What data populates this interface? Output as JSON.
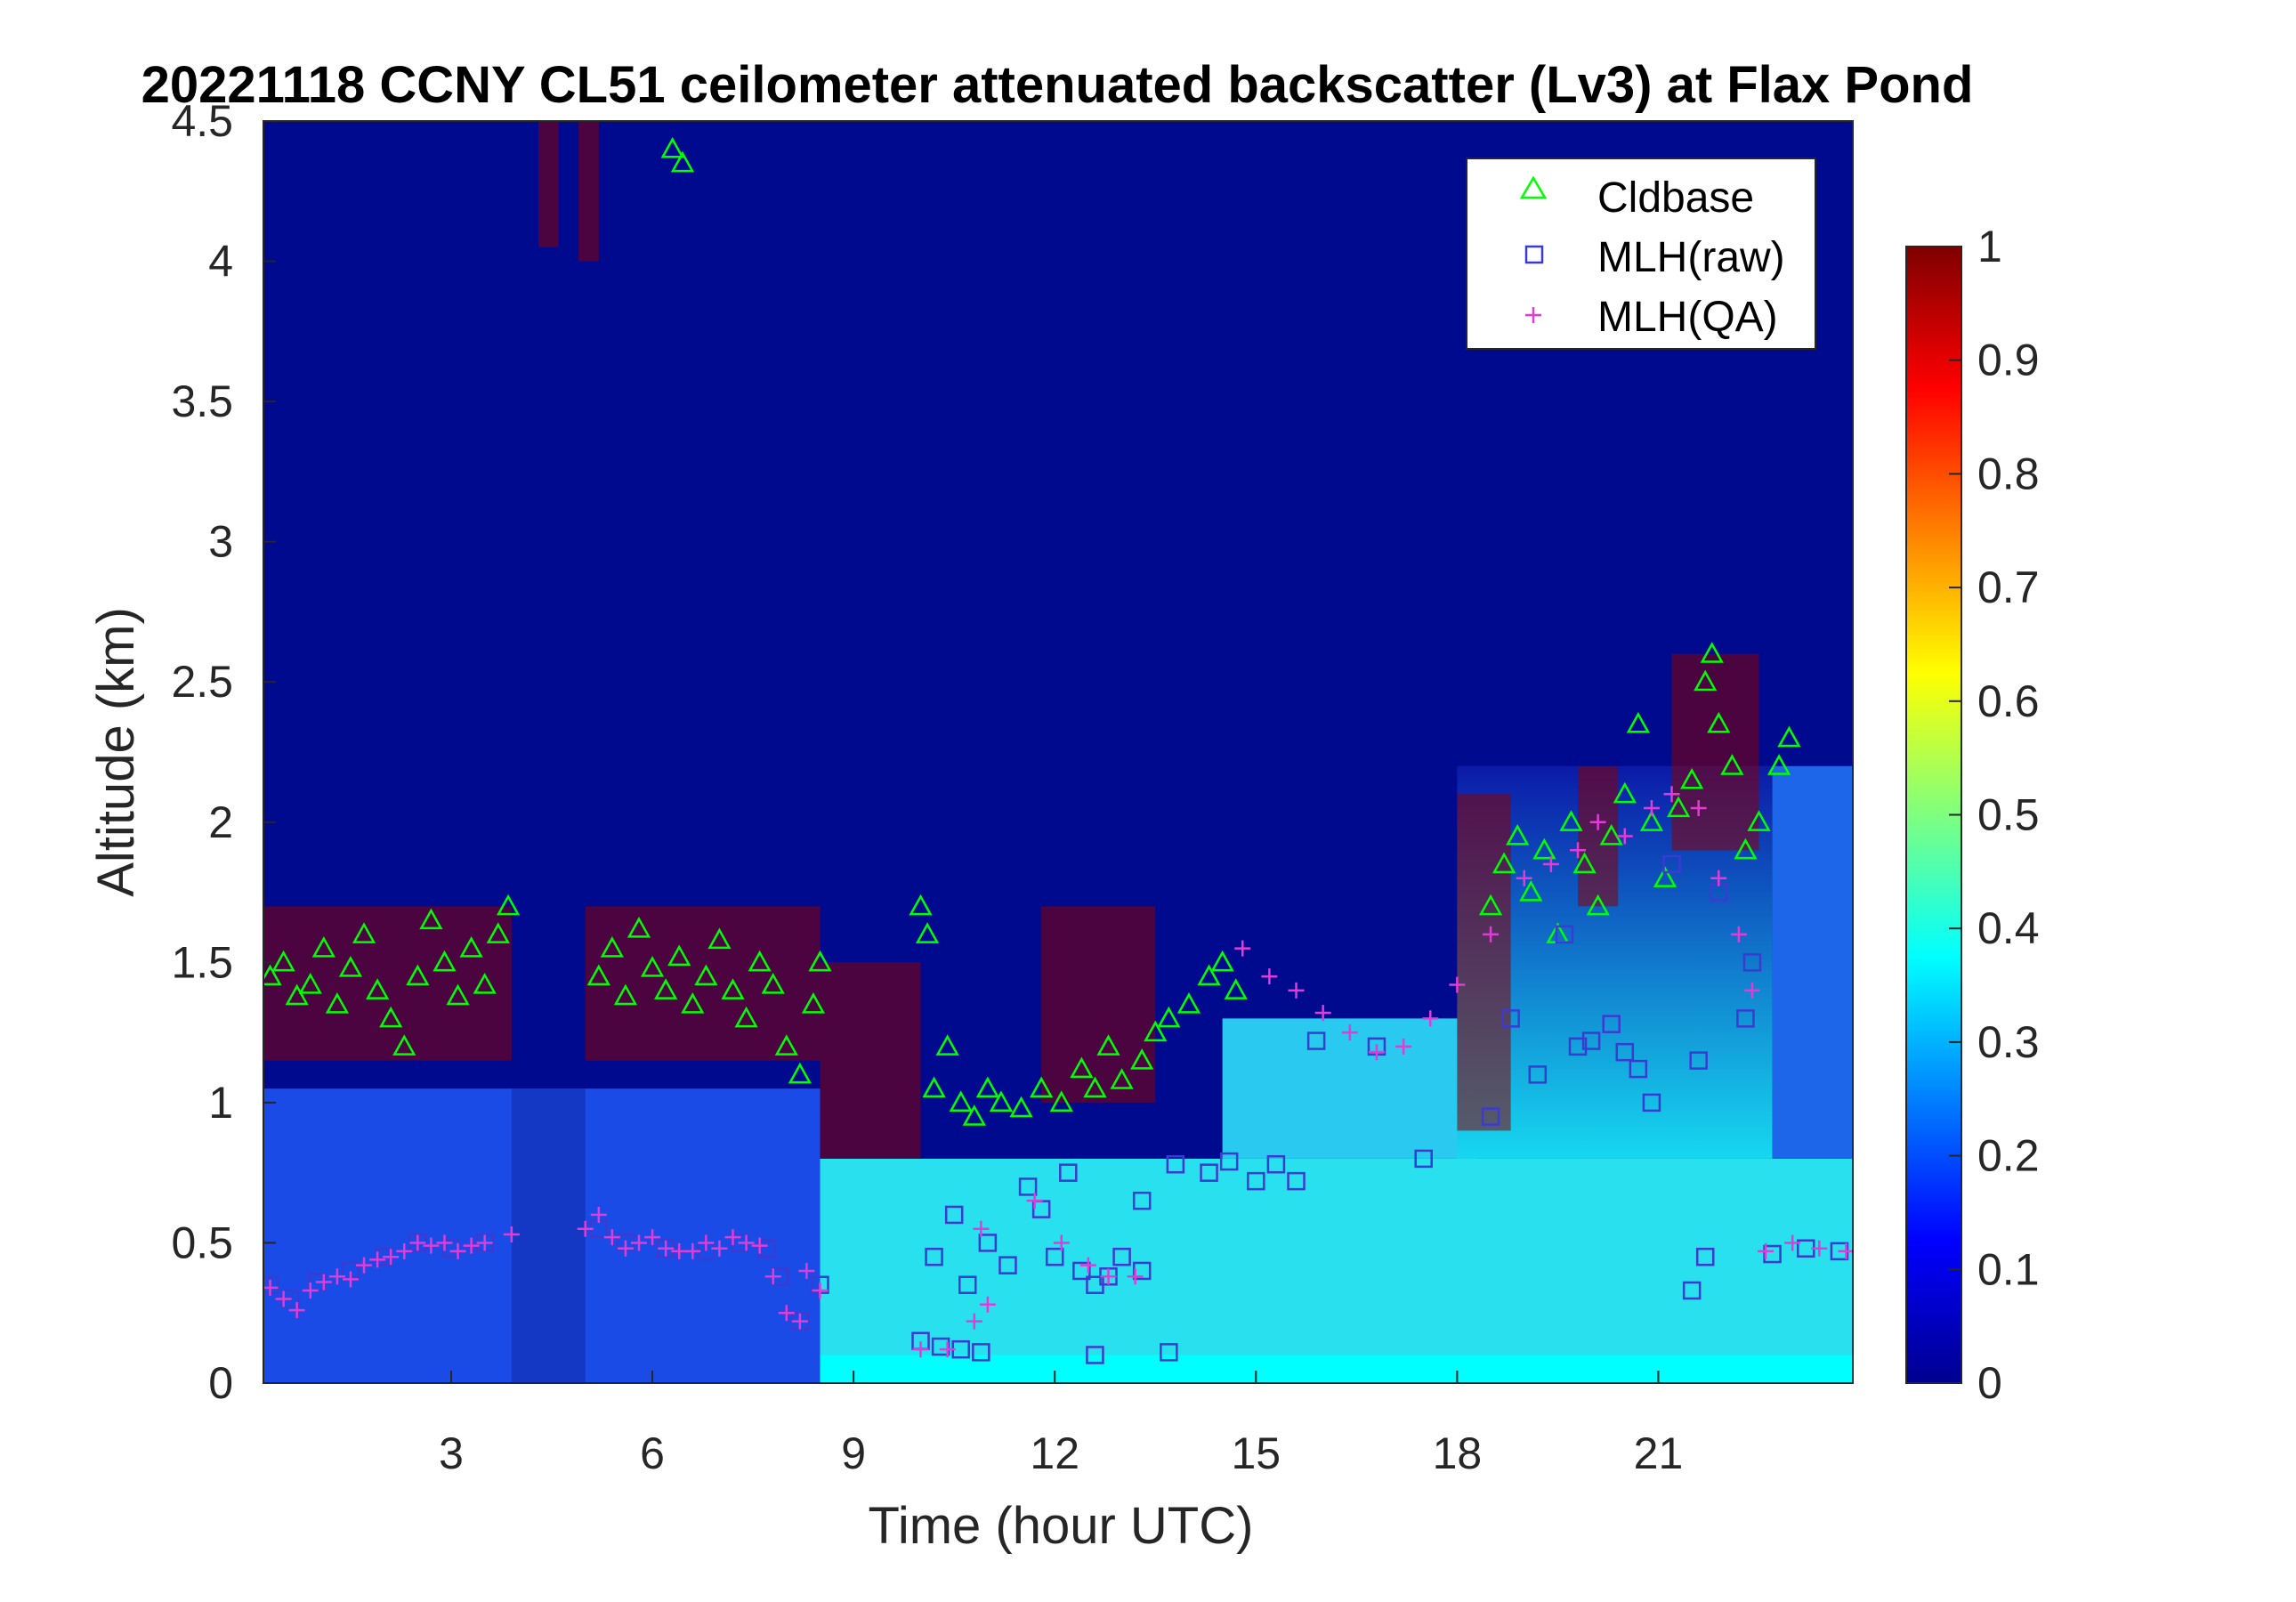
{
  "chart_data": {
    "type": "heatmap",
    "title": "20221118 CCNY CL51 ceilometer attenuated backscatter (Lv3) at Flax Pond",
    "xlabel": "Time (hour UTC)",
    "ylabel": "Altitude (km)",
    "xlim": [
      0.2,
      23.9
    ],
    "ylim": [
      0,
      4.5
    ],
    "xticks": [
      "3",
      "6",
      "9",
      "12",
      "15",
      "18",
      "21"
    ],
    "yticks": [
      "0",
      "0.5",
      "1",
      "1.5",
      "2",
      "2.5",
      "3",
      "3.5",
      "4",
      "4.5"
    ],
    "colorbar": {
      "colormap": "jet",
      "range": [
        0,
        1
      ],
      "ticks": [
        "0",
        "0.1",
        "0.2",
        "0.3",
        "0.4",
        "0.5",
        "0.6",
        "0.7",
        "0.8",
        "0.9",
        "1"
      ]
    },
    "legend": {
      "position": "top-right",
      "entries": [
        {
          "label": "Cldbase",
          "marker": "triangle",
          "color": "#00ff00"
        },
        {
          "label": "MLH(raw)",
          "marker": "square",
          "color": "#3b3bd1"
        },
        {
          "label": "MLH(QA)",
          "marker": "plus",
          "color": "#e23bd6"
        }
      ]
    },
    "series": [
      {
        "name": "Cldbase",
        "points": [
          [
            0.3,
            1.45
          ],
          [
            0.5,
            1.5
          ],
          [
            0.7,
            1.38
          ],
          [
            0.9,
            1.42
          ],
          [
            1.1,
            1.55
          ],
          [
            1.3,
            1.35
          ],
          [
            1.5,
            1.48
          ],
          [
            1.7,
            1.6
          ],
          [
            1.9,
            1.4
          ],
          [
            2.1,
            1.3
          ],
          [
            2.3,
            1.2
          ],
          [
            2.5,
            1.45
          ],
          [
            2.7,
            1.65
          ],
          [
            2.9,
            1.5
          ],
          [
            3.1,
            1.38
          ],
          [
            3.3,
            1.55
          ],
          [
            3.5,
            1.42
          ],
          [
            3.7,
            1.6
          ],
          [
            3.85,
            1.7
          ],
          [
            5.2,
            1.45
          ],
          [
            5.4,
            1.55
          ],
          [
            5.6,
            1.38
          ],
          [
            5.8,
            1.62
          ],
          [
            6.0,
            1.48
          ],
          [
            6.2,
            1.4
          ],
          [
            6.4,
            1.52
          ],
          [
            6.6,
            1.35
          ],
          [
            6.8,
            1.45
          ],
          [
            7.0,
            1.58
          ],
          [
            7.2,
            1.4
          ],
          [
            7.4,
            1.3
          ],
          [
            7.6,
            1.5
          ],
          [
            7.8,
            1.42
          ],
          [
            8.0,
            1.2
          ],
          [
            8.2,
            1.1
          ],
          [
            8.4,
            1.35
          ],
          [
            8.5,
            1.5
          ],
          [
            6.3,
            4.4
          ],
          [
            6.45,
            4.35
          ],
          [
            10.0,
            1.7
          ],
          [
            10.1,
            1.6
          ],
          [
            10.2,
            1.05
          ],
          [
            10.4,
            1.2
          ],
          [
            10.6,
            1.0
          ],
          [
            10.8,
            0.95
          ],
          [
            11.0,
            1.05
          ],
          [
            11.2,
            1.0
          ],
          [
            11.5,
            0.98
          ],
          [
            11.8,
            1.05
          ],
          [
            12.1,
            1.0
          ],
          [
            12.4,
            1.12
          ],
          [
            12.6,
            1.05
          ],
          [
            12.8,
            1.2
          ],
          [
            13.0,
            1.08
          ],
          [
            13.3,
            1.15
          ],
          [
            13.5,
            1.25
          ],
          [
            13.7,
            1.3
          ],
          [
            14.0,
            1.35
          ],
          [
            14.3,
            1.45
          ],
          [
            14.5,
            1.5
          ],
          [
            14.7,
            1.4
          ],
          [
            18.5,
            1.7
          ],
          [
            18.7,
            1.85
          ],
          [
            18.9,
            1.95
          ],
          [
            19.1,
            1.75
          ],
          [
            19.3,
            1.9
          ],
          [
            19.5,
            1.6
          ],
          [
            19.7,
            2.0
          ],
          [
            19.9,
            1.85
          ],
          [
            20.1,
            1.7
          ],
          [
            20.3,
            1.95
          ],
          [
            20.5,
            2.1
          ],
          [
            20.7,
            2.35
          ],
          [
            20.9,
            2.0
          ],
          [
            21.1,
            1.8
          ],
          [
            21.3,
            2.05
          ],
          [
            21.5,
            2.15
          ],
          [
            21.7,
            2.5
          ],
          [
            21.8,
            2.6
          ],
          [
            21.9,
            2.35
          ],
          [
            22.1,
            2.2
          ],
          [
            22.3,
            1.9
          ],
          [
            22.5,
            2.0
          ],
          [
            22.8,
            2.2
          ],
          [
            22.95,
            2.3
          ]
        ]
      },
      {
        "name": "MLH(raw)",
        "points": [
          [
            0.3,
            0.35
          ],
          [
            0.6,
            0.3
          ],
          [
            1.0,
            0.36
          ],
          [
            1.5,
            0.4
          ],
          [
            2.0,
            0.45
          ],
          [
            2.5,
            0.5
          ],
          [
            3.0,
            0.48
          ],
          [
            3.5,
            0.5
          ],
          [
            5.2,
            0.55
          ],
          [
            5.6,
            0.5
          ],
          [
            6.2,
            0.48
          ],
          [
            6.8,
            0.47
          ],
          [
            7.3,
            0.5
          ],
          [
            7.7,
            0.48
          ],
          [
            7.9,
            0.38
          ],
          [
            8.2,
            0.22
          ],
          [
            8.5,
            0.35
          ],
          [
            10.0,
            0.15
          ],
          [
            10.3,
            0.13
          ],
          [
            10.6,
            0.12
          ],
          [
            10.9,
            0.11
          ],
          [
            10.2,
            0.45
          ],
          [
            10.5,
            0.6
          ],
          [
            10.7,
            0.35
          ],
          [
            11.0,
            0.5
          ],
          [
            11.3,
            0.42
          ],
          [
            11.6,
            0.7
          ],
          [
            11.8,
            0.62
          ],
          [
            12.0,
            0.45
          ],
          [
            12.2,
            0.75
          ],
          [
            12.4,
            0.4
          ],
          [
            12.6,
            0.35
          ],
          [
            12.8,
            0.38
          ],
          [
            13.0,
            0.45
          ],
          [
            13.3,
            0.4
          ],
          [
            12.6,
            0.1
          ],
          [
            13.7,
            0.11
          ],
          [
            13.3,
            0.65
          ],
          [
            13.8,
            0.78
          ],
          [
            14.3,
            0.75
          ],
          [
            14.6,
            0.79
          ],
          [
            15.0,
            0.72
          ],
          [
            15.3,
            0.78
          ],
          [
            15.6,
            0.72
          ],
          [
            15.9,
            1.22
          ],
          [
            16.8,
            1.2
          ],
          [
            17.5,
            0.8
          ],
          [
            18.5,
            0.95
          ],
          [
            18.8,
            1.3
          ],
          [
            19.2,
            1.1
          ],
          [
            19.6,
            1.6
          ],
          [
            19.8,
            1.2
          ],
          [
            20.0,
            1.22
          ],
          [
            20.3,
            1.28
          ],
          [
            20.5,
            1.18
          ],
          [
            20.7,
            1.12
          ],
          [
            20.9,
            1.0
          ],
          [
            21.2,
            1.85
          ],
          [
            21.6,
            1.15
          ],
          [
            21.9,
            1.75
          ],
          [
            22.3,
            1.3
          ],
          [
            22.4,
            1.5
          ],
          [
            21.5,
            0.33
          ],
          [
            21.7,
            0.45
          ],
          [
            22.7,
            0.46
          ],
          [
            23.2,
            0.48
          ],
          [
            23.7,
            0.47
          ]
        ]
      },
      {
        "name": "MLH(QA)",
        "points": [
          [
            0.3,
            0.34
          ],
          [
            0.5,
            0.3
          ],
          [
            0.7,
            0.26
          ],
          [
            0.9,
            0.33
          ],
          [
            1.1,
            0.36
          ],
          [
            1.3,
            0.38
          ],
          [
            1.5,
            0.37
          ],
          [
            1.7,
            0.42
          ],
          [
            1.9,
            0.44
          ],
          [
            2.1,
            0.45
          ],
          [
            2.3,
            0.47
          ],
          [
            2.5,
            0.5
          ],
          [
            2.7,
            0.49
          ],
          [
            2.9,
            0.5
          ],
          [
            3.1,
            0.47
          ],
          [
            3.3,
            0.49
          ],
          [
            3.5,
            0.5
          ],
          [
            3.9,
            0.53
          ],
          [
            5.0,
            0.55
          ],
          [
            5.2,
            0.6
          ],
          [
            5.4,
            0.52
          ],
          [
            5.6,
            0.48
          ],
          [
            5.8,
            0.5
          ],
          [
            6.0,
            0.52
          ],
          [
            6.2,
            0.48
          ],
          [
            6.4,
            0.47
          ],
          [
            6.6,
            0.47
          ],
          [
            6.8,
            0.5
          ],
          [
            7.0,
            0.48
          ],
          [
            7.2,
            0.52
          ],
          [
            7.4,
            0.5
          ],
          [
            7.6,
            0.49
          ],
          [
            7.8,
            0.38
          ],
          [
            8.0,
            0.25
          ],
          [
            8.2,
            0.22
          ],
          [
            8.3,
            0.4
          ],
          [
            8.5,
            0.33
          ],
          [
            10.0,
            0.12
          ],
          [
            10.4,
            0.12
          ],
          [
            10.8,
            0.22
          ],
          [
            11.0,
            0.28
          ],
          [
            10.9,
            0.55
          ],
          [
            11.7,
            0.65
          ],
          [
            12.1,
            0.5
          ],
          [
            12.5,
            0.42
          ],
          [
            12.8,
            0.38
          ],
          [
            13.2,
            0.38
          ],
          [
            14.8,
            1.55
          ],
          [
            15.2,
            1.45
          ],
          [
            15.6,
            1.4
          ],
          [
            16.0,
            1.32
          ],
          [
            16.4,
            1.25
          ],
          [
            16.8,
            1.18
          ],
          [
            17.2,
            1.2
          ],
          [
            17.6,
            1.3
          ],
          [
            18.0,
            1.42
          ],
          [
            18.5,
            1.6
          ],
          [
            19.0,
            1.8
          ],
          [
            19.4,
            1.85
          ],
          [
            19.8,
            1.9
          ],
          [
            20.1,
            2.0
          ],
          [
            20.5,
            1.95
          ],
          [
            20.9,
            2.05
          ],
          [
            21.2,
            2.1
          ],
          [
            21.6,
            2.05
          ],
          [
            21.9,
            1.8
          ],
          [
            22.2,
            1.6
          ],
          [
            22.4,
            1.4
          ],
          [
            22.6,
            0.47
          ],
          [
            23.0,
            0.5
          ],
          [
            23.4,
            0.48
          ],
          [
            23.8,
            0.47
          ]
        ]
      }
    ]
  }
}
